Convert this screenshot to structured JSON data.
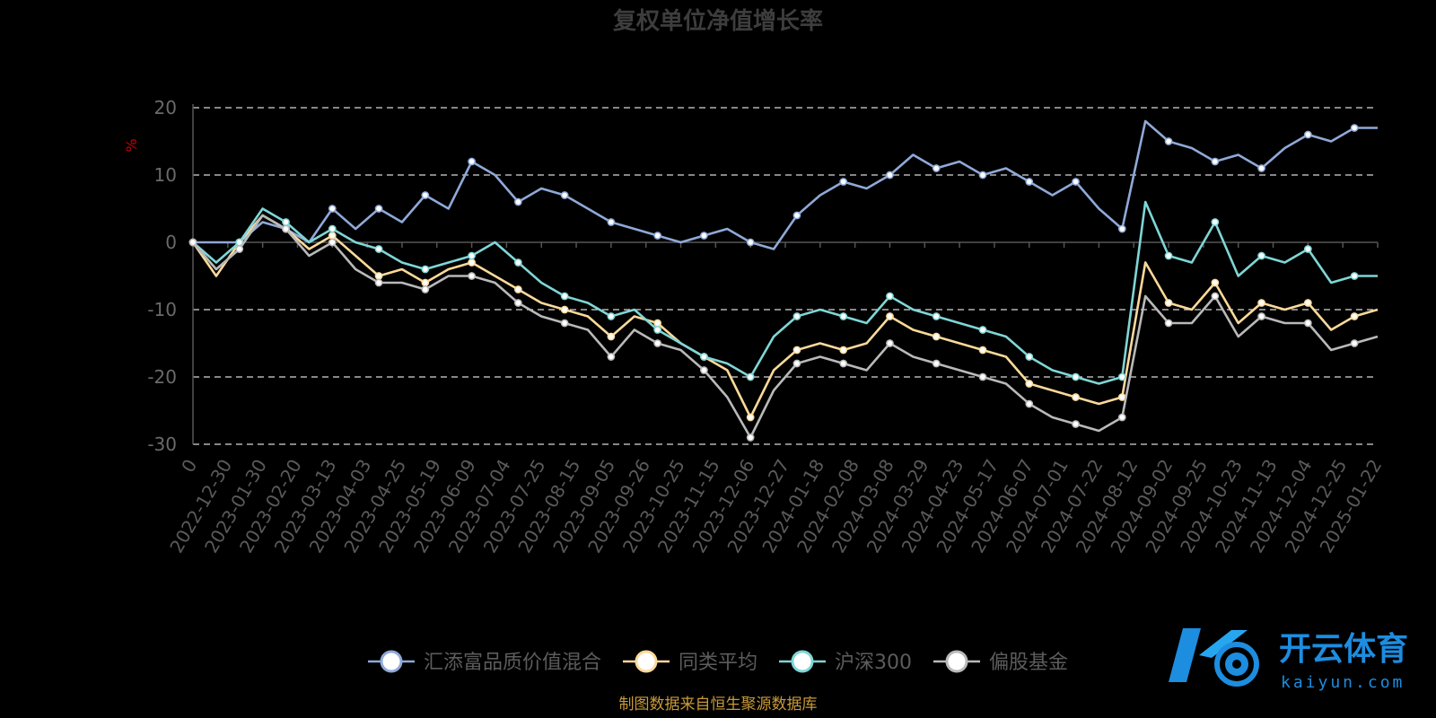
{
  "chart_data": {
    "type": "line",
    "title": "复权单位净值增长率",
    "ylabel": "%",
    "ylim": [
      -30,
      20
    ],
    "yticks": [
      20,
      10,
      0,
      -10,
      -20,
      -30
    ],
    "x_tick_labels": [
      "0",
      "2022-12-30",
      "2023-01-30",
      "2023-02-20",
      "2023-03-13",
      "2023-04-03",
      "2023-04-25",
      "2023-05-19",
      "2023-06-09",
      "2023-07-04",
      "2023-07-25",
      "2023-08-15",
      "2023-09-05",
      "2023-09-26",
      "2023-10-25",
      "2023-11-15",
      "2023-12-06",
      "2023-12-27",
      "2024-01-18",
      "2024-02-08",
      "2024-03-08",
      "2024-03-29",
      "2024-04-23",
      "2024-05-17",
      "2024-06-07",
      "2024-07-01",
      "2024-07-22",
      "2024-08-12",
      "2024-09-02",
      "2024-09-25",
      "2024-10-23",
      "2024-11-13",
      "2024-12-04",
      "2024-12-25",
      "2025-01-22"
    ],
    "grid": true,
    "legend_position": "bottom",
    "series": [
      {
        "name": "汇添富品质价值混合",
        "color": "#8fa9d8",
        "values": [
          0,
          0,
          0,
          3,
          2,
          0,
          5,
          2,
          5,
          3,
          7,
          5,
          12,
          10,
          6,
          8,
          7,
          5,
          3,
          2,
          1,
          0,
          1,
          2,
          0,
          -1,
          4,
          7,
          9,
          8,
          10,
          13,
          11,
          12,
          10,
          11,
          9,
          7,
          9,
          5,
          2,
          18,
          15,
          14,
          12,
          13,
          11,
          14,
          16,
          15,
          17,
          17
        ]
      },
      {
        "name": "同类平均",
        "color": "#fbd99a",
        "values": [
          0,
          -5,
          0,
          4,
          2,
          -1,
          1,
          -2,
          -5,
          -4,
          -6,
          -4,
          -3,
          -5,
          -7,
          -9,
          -10,
          -11,
          -14,
          -11,
          -12,
          -15,
          -17,
          -19,
          -26,
          -19,
          -16,
          -15,
          -16,
          -15,
          -11,
          -13,
          -14,
          -15,
          -16,
          -17,
          -21,
          -22,
          -23,
          -24,
          -23,
          -3,
          -9,
          -10,
          -6,
          -12,
          -9,
          -10,
          -9,
          -13,
          -11,
          -10
        ]
      },
      {
        "name": "沪深300",
        "color": "#7fd6d6",
        "values": [
          0,
          -3,
          0,
          5,
          3,
          0,
          2,
          0,
          -1,
          -3,
          -4,
          -3,
          -2,
          0,
          -3,
          -6,
          -8,
          -9,
          -11,
          -10,
          -13,
          -15,
          -17,
          -18,
          -20,
          -14,
          -11,
          -10,
          -11,
          -12,
          -8,
          -10,
          -11,
          -12,
          -13,
          -14,
          -17,
          -19,
          -20,
          -21,
          -20,
          6,
          -2,
          -3,
          3,
          -5,
          -2,
          -3,
          -1,
          -6,
          -5,
          -5
        ]
      },
      {
        "name": "偏股基金",
        "color": "#b9b9b9",
        "values": [
          0,
          -4,
          -1,
          4,
          2,
          -2,
          0,
          -4,
          -6,
          -6,
          -7,
          -5,
          -5,
          -6,
          -9,
          -11,
          -12,
          -13,
          -17,
          -13,
          -15,
          -16,
          -19,
          -23,
          -29,
          -22,
          -18,
          -17,
          -18,
          -19,
          -15,
          -17,
          -18,
          -19,
          -20,
          -21,
          -24,
          -26,
          -27,
          -28,
          -26,
          -8,
          -12,
          -12,
          -8,
          -14,
          -11,
          -12,
          -12,
          -16,
          -15,
          -14
        ]
      }
    ]
  },
  "footer": {
    "source": "制图数据来自恒生聚源数据库"
  },
  "logo": {
    "name": "开云体育",
    "domain": "kaiyun.com"
  }
}
